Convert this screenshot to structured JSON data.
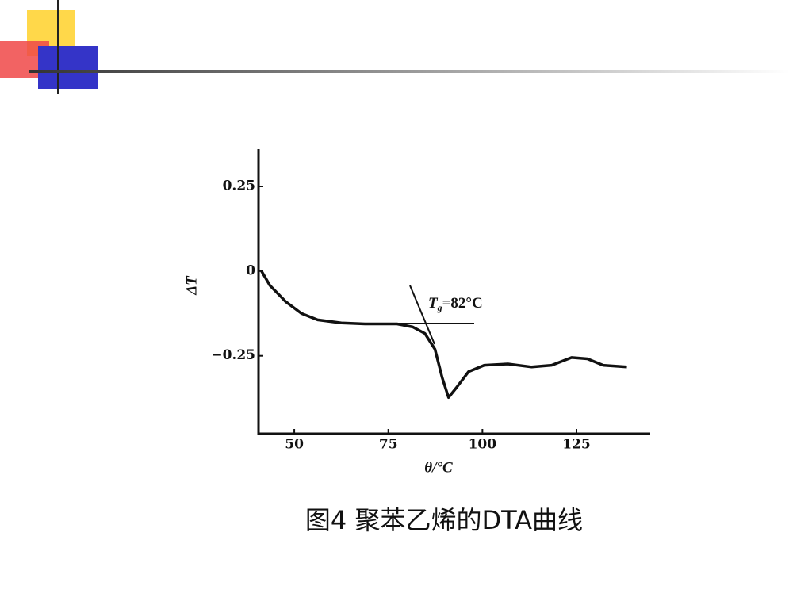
{
  "chart_data": {
    "type": "line",
    "caption": "图4  聚苯乙烯的DTA曲线",
    "x_label": "θ/°C",
    "y_label": "ΔT",
    "annotation": {
      "symbol": "T",
      "subscript": "g",
      "text": "=82°C"
    },
    "x": [
      41.3,
      43.5,
      47.7,
      51.9,
      56.2,
      62.5,
      68.8,
      77.3,
      81.5,
      84.7,
      87.4,
      89.3,
      91.0,
      93.1,
      96.3,
      100.5,
      106.8,
      113.1,
      118.4,
      123.7,
      127.9,
      132.1,
      138.4
    ],
    "series": [
      {
        "color": "#111111",
        "values": [
          0,
          -0.042,
          -0.09,
          -0.125,
          -0.144,
          -0.153,
          -0.156,
          -0.156,
          -0.165,
          -0.184,
          -0.231,
          -0.314,
          -0.373,
          -0.344,
          -0.297,
          -0.278,
          -0.274,
          -0.283,
          -0.278,
          -0.255,
          -0.259,
          -0.278,
          -0.283
        ]
      }
    ],
    "xlim": [
      40.5,
      144.6
    ],
    "ylim": [
      -0.48,
      0.36
    ],
    "xticks": [
      50,
      75,
      100,
      125
    ],
    "yticks": [
      0.25,
      0,
      {
        "value": -0.25,
        "label": "−0.25"
      }
    ]
  }
}
